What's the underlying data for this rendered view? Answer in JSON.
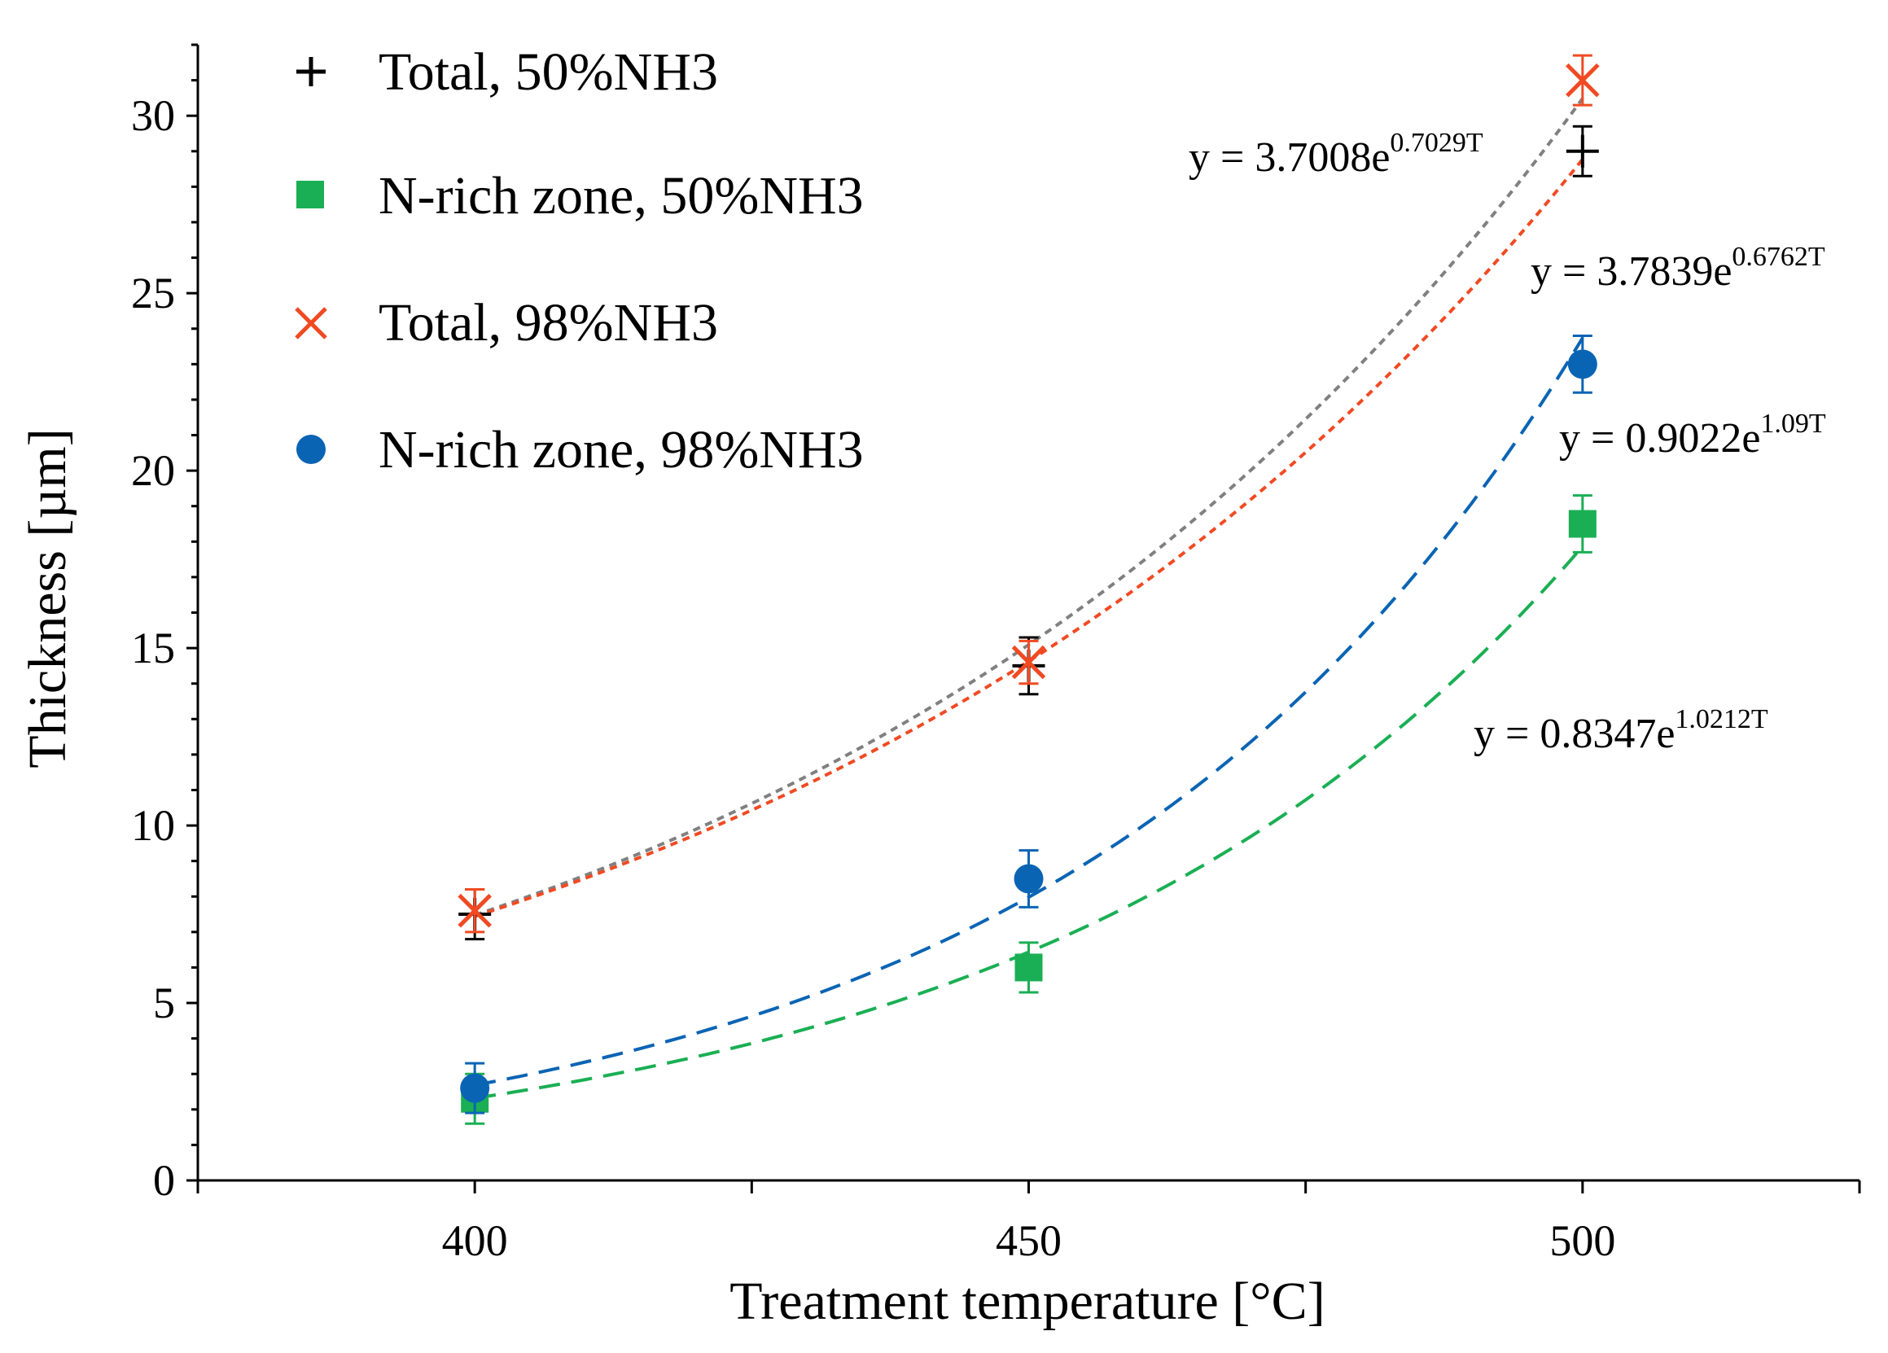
{
  "chart_data": {
    "type": "scatter",
    "title": "",
    "xlabel": "Treatment temperature [°C]",
    "ylabel": "Thickness [µm]",
    "xlim": [
      375,
      525
    ],
    "ylim": [
      0,
      32
    ],
    "x_ticks": [
      400,
      450,
      500
    ],
    "y_ticks": [
      0,
      5,
      10,
      15,
      20,
      25,
      30
    ],
    "x": [
      400,
      450,
      500
    ],
    "legend_position": "top-left",
    "series": [
      {
        "name": "Total, 50%NH3",
        "marker": "plus",
        "color": "#000000",
        "trend_color": "#808080",
        "values": [
          7.5,
          14.5,
          29.0
        ],
        "errors": [
          0.7,
          0.8,
          0.7
        ],
        "trend": {
          "a": 3.7008,
          "b": 0.7029,
          "label_prefix": "y = 3.7008e",
          "label_exp": "0.7029T"
        }
      },
      {
        "name": "N-rich zone, 50%NH3",
        "marker": "square",
        "color": "#1AAF54",
        "trend_color": "#1AAF54",
        "values": [
          2.3,
          6.0,
          18.5
        ],
        "errors": [
          0.7,
          0.7,
          0.8
        ],
        "trend": {
          "a": 0.8347,
          "b": 1.0212,
          "label_prefix": "y = 0.8347e",
          "label_exp": "1.0212T"
        }
      },
      {
        "name": "Total, 98%NH3",
        "marker": "x",
        "color": "#F04A23",
        "trend_color": "#F04A23",
        "values": [
          7.6,
          14.6,
          31.0
        ],
        "errors": [
          0.6,
          0.6,
          0.7
        ],
        "trend": {
          "a": 3.7839,
          "b": 0.6762,
          "label_prefix": "y = 3.7839e",
          "label_exp": "0.6762T"
        }
      },
      {
        "name": "N-rich zone, 98%NH3",
        "marker": "circle",
        "color": "#0A64B4",
        "trend_color": "#0A64B4",
        "values": [
          2.6,
          8.5,
          23.0
        ],
        "errors": [
          0.7,
          0.8,
          0.8
        ],
        "trend": {
          "a": 0.9022,
          "b": 1.09,
          "label_prefix": "y = 0.9022e",
          "label_exp": "1.09T"
        }
      }
    ]
  }
}
